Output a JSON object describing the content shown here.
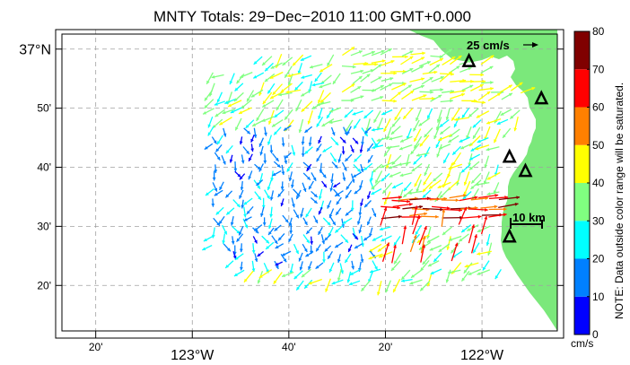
{
  "map": {
    "title": "MNTY Totals: 29−Dec−2010 11:00 GMT+0.000",
    "x_ticks": [
      {
        "lon": -123.3333,
        "label": "20'",
        "major": false
      },
      {
        "lon": -123.0,
        "label": "123°W",
        "major": true
      },
      {
        "lon": -122.6667,
        "label": "40'",
        "major": false
      },
      {
        "lon": -122.3333,
        "label": "20'",
        "major": false
      },
      {
        "lon": -122.0,
        "label": "122°W",
        "major": true
      }
    ],
    "y_ticks": [
      {
        "lat": 37.0,
        "label": "37°N",
        "major": true
      },
      {
        "lat": 36.8333,
        "label": "50'",
        "major": false
      },
      {
        "lat": 36.6667,
        "label": "40'",
        "major": false
      },
      {
        "lat": 36.5,
        "label": "30'",
        "major": false
      },
      {
        "lat": 36.3333,
        "label": "20'",
        "major": false
      }
    ],
    "extent": {
      "lon_min": -123.45,
      "lon_max": -121.74,
      "lat_min": 36.205,
      "lat_max": 37.055
    },
    "scale_arrow_label": "25 cm/s",
    "scale_bar_label": "10 km",
    "stations": [
      {
        "name": "station-1",
        "lon": -122.045,
        "lat": 36.965
      },
      {
        "name": "station-2",
        "lon": -121.795,
        "lat": 36.86
      },
      {
        "name": "station-3",
        "lon": -121.905,
        "lat": 36.695
      },
      {
        "name": "station-4",
        "lon": -121.85,
        "lat": 36.655
      },
      {
        "name": "station-5",
        "lon": -121.905,
        "lat": 36.47
      }
    ],
    "colors": {
      "land": "#7be87b",
      "coast": "#000000",
      "grid": "#a0a0a0",
      "station": "#000000"
    }
  },
  "colorbar": {
    "ticks": [
      "0",
      "10",
      "20",
      "30",
      "40",
      "50",
      "60",
      "70",
      "80"
    ],
    "vmin": 0,
    "vmax": 80,
    "colors": [
      "#0000ff",
      "#0080ff",
      "#00ffff",
      "#80ff80",
      "#ffff00",
      "#ff8000",
      "#ff0000",
      "#800000"
    ],
    "unit": "cm/s",
    "note": "NOTE: Data outside color range will be saturated."
  }
}
